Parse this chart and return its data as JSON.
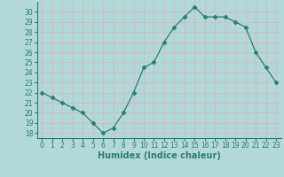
{
  "x": [
    0,
    1,
    2,
    3,
    4,
    5,
    6,
    7,
    8,
    9,
    10,
    11,
    12,
    13,
    14,
    15,
    16,
    17,
    18,
    19,
    20,
    21,
    22,
    23
  ],
  "y": [
    22,
    21.5,
    21,
    20.5,
    20,
    19,
    18,
    18.5,
    20,
    22,
    24.5,
    25,
    27,
    28.5,
    29.5,
    30.5,
    29.5,
    29.5,
    29.5,
    29,
    28.5,
    26,
    24.5,
    23
  ],
  "line_color": "#2e7d6e",
  "marker": "D",
  "marker_size": 2.5,
  "bg_color": "#b2d8d8",
  "grid_color": "#c8e8e8",
  "xlabel": "Humidex (Indice chaleur)",
  "xlim": [
    -0.5,
    23.5
  ],
  "ylim": [
    17.5,
    31
  ],
  "yticks": [
    18,
    19,
    20,
    21,
    22,
    23,
    24,
    25,
    26,
    27,
    28,
    29,
    30
  ],
  "xtick_labels": [
    "0",
    "1",
    "2",
    "3",
    "4",
    "5",
    "6",
    "7",
    "8",
    "9",
    "10",
    "11",
    "12",
    "13",
    "14",
    "15",
    "16",
    "17",
    "18",
    "19",
    "20",
    "21",
    "22",
    "23"
  ],
  "tick_fontsize": 5.5,
  "xlabel_fontsize": 7,
  "linewidth": 0.9
}
